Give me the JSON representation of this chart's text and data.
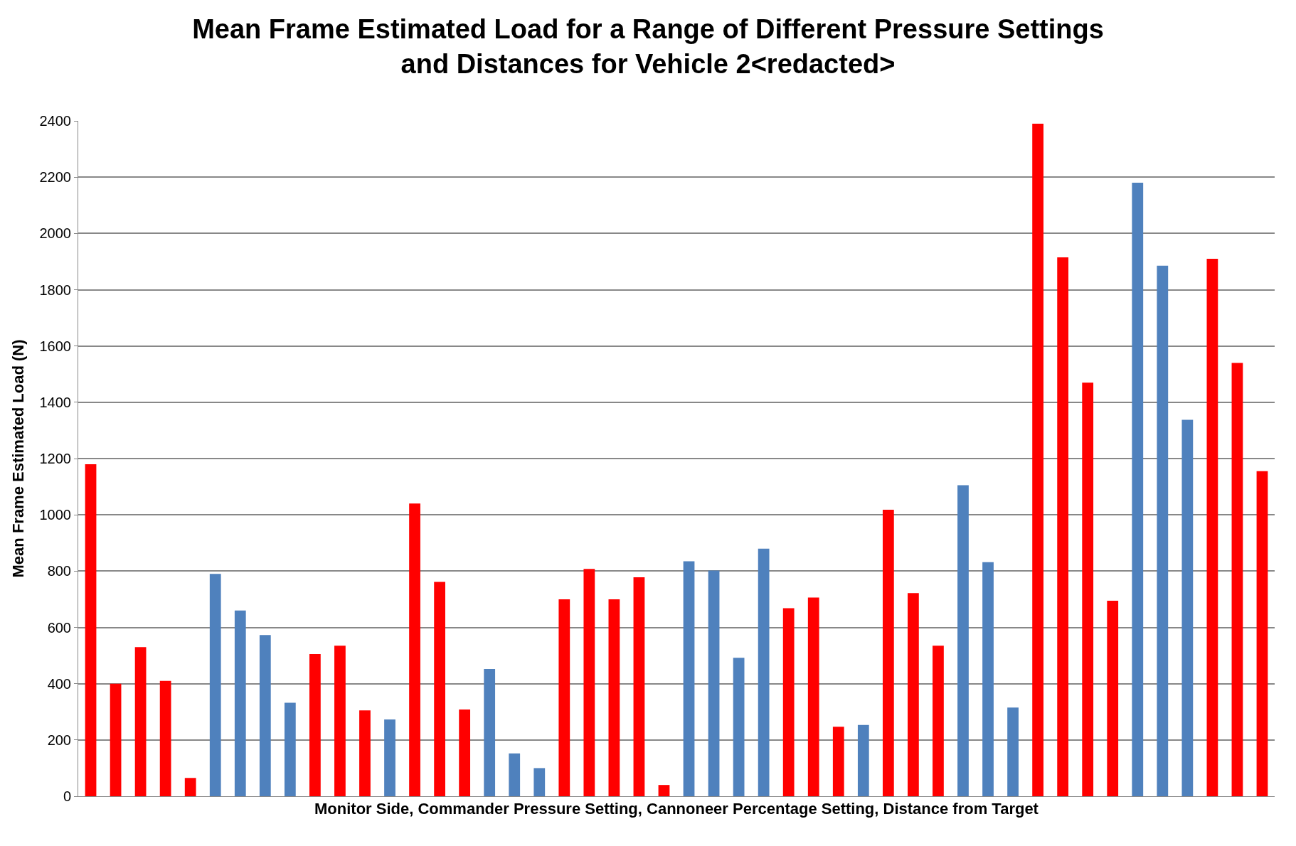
{
  "chart_data": {
    "type": "bar",
    "title": "Mean Frame Estimated Load for a Range of Different Pressure Settings\nand Distances for Vehicle 2<redacted>",
    "xlabel": "Monitor Side, Commander Pressure Setting, Cannoneer Percentage Setting, Distance from Target",
    "ylabel": "Mean Frame Estimated Load (N)",
    "categories": [
      null,
      null,
      null,
      null,
      null,
      null,
      null,
      null,
      null,
      null,
      null,
      null,
      null,
      null,
      null,
      null,
      null,
      null,
      null,
      null,
      null,
      null,
      null,
      null,
      null,
      null,
      null,
      null,
      null,
      null,
      null,
      null,
      null,
      null,
      null,
      null,
      null,
      null,
      null,
      null,
      null,
      null,
      null,
      null,
      null,
      null,
      null,
      null
    ],
    "values": [
      1180,
      400,
      530,
      410,
      65,
      790,
      660,
      573,
      332,
      505,
      535,
      305,
      273,
      1040,
      762,
      308,
      452,
      152,
      100,
      700,
      808,
      700,
      778,
      40,
      835,
      802,
      492,
      880,
      668,
      706,
      247,
      253,
      1018,
      722,
      535,
      1105,
      832,
      315,
      2390,
      1915,
      1470,
      695,
      2180,
      1885,
      1338,
      1910,
      1540,
      1155
    ],
    "colors": [
      "#ff0000",
      "#ff0000",
      "#ff0000",
      "#ff0000",
      "#ff0000",
      "#4f81bd",
      "#4f81bd",
      "#4f81bd",
      "#4f81bd",
      "#ff0000",
      "#ff0000",
      "#ff0000",
      "#4f81bd",
      "#ff0000",
      "#ff0000",
      "#ff0000",
      "#4f81bd",
      "#4f81bd",
      "#4f81bd",
      "#ff0000",
      "#ff0000",
      "#ff0000",
      "#ff0000",
      "#ff0000",
      "#4f81bd",
      "#4f81bd",
      "#4f81bd",
      "#4f81bd",
      "#ff0000",
      "#ff0000",
      "#ff0000",
      "#4f81bd",
      "#ff0000",
      "#ff0000",
      "#ff0000",
      "#4f81bd",
      "#4f81bd",
      "#4f81bd",
      "#ff0000",
      "#ff0000",
      "#ff0000",
      "#ff0000",
      "#4f81bd",
      "#4f81bd",
      "#4f81bd",
      "#ff0000",
      "#ff0000",
      "#ff0000"
    ],
    "ylim": [
      0,
      2400
    ],
    "yticks": [
      0,
      200,
      400,
      600,
      800,
      1000,
      1200,
      1400,
      1600,
      1800,
      2000,
      2200,
      2400
    ],
    "grid": "y"
  }
}
